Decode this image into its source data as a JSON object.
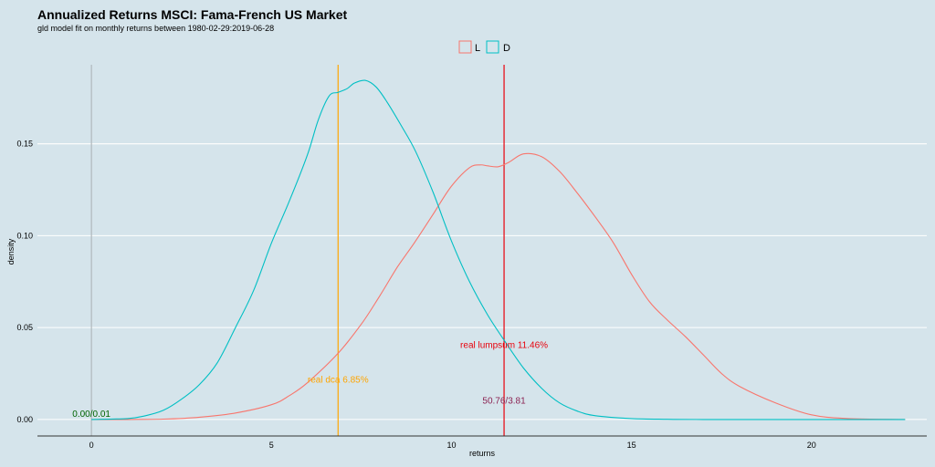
{
  "chart_data": {
    "type": "line",
    "title": "Annualized Returns MSCI: Fama-French US Market",
    "subtitle": "gld model fit on monthly returns between 1980-02-29:2019-06-28",
    "xlabel": "returns",
    "ylabel": "density",
    "xlim": [
      -1.5,
      23.2
    ],
    "ylim": [
      -0.009,
      0.193
    ],
    "xticks": [
      0,
      5,
      10,
      15,
      20
    ],
    "yticks": [
      0.0,
      0.05,
      0.1,
      0.15
    ],
    "ytick_labels": [
      "0.00",
      "0.05",
      "0.10",
      "0.15"
    ],
    "grid": "horizontal",
    "legend": {
      "position": "top-center",
      "entries": [
        "L",
        "D"
      ]
    },
    "colors": {
      "L": "#f8766d",
      "D": "#00bfc4",
      "lumpsum": "#e8000b",
      "dca": "#ffa500",
      "zero_line": "#b0b8bc",
      "annot_ratio": "#8b2252",
      "annot_zero": "#006400",
      "background": "#d5e4eb",
      "gridline": "#ffffff"
    },
    "series": [
      {
        "name": "L",
        "x": [
          0,
          1,
          2,
          3,
          4,
          5,
          5.5,
          6,
          6.85,
          7.5,
          8,
          8.5,
          9,
          9.5,
          10,
          10.5,
          10.8,
          11,
          11.3,
          11.6,
          12,
          12.5,
          13,
          13.5,
          14,
          14.5,
          15,
          15.5,
          16,
          16.5,
          17,
          17.5,
          18,
          19,
          20,
          21,
          22.6
        ],
        "values": [
          0.0,
          0.0,
          0.0002,
          0.0012,
          0.0035,
          0.008,
          0.013,
          0.02,
          0.036,
          0.052,
          0.067,
          0.083,
          0.097,
          0.112,
          0.127,
          0.137,
          0.1385,
          0.138,
          0.1375,
          0.14,
          0.1445,
          0.143,
          0.135,
          0.123,
          0.11,
          0.096,
          0.079,
          0.064,
          0.054,
          0.045,
          0.035,
          0.025,
          0.018,
          0.009,
          0.0025,
          0.0005,
          0.0
        ]
      },
      {
        "name": "D",
        "x": [
          0,
          1,
          1.5,
          2,
          2.5,
          3,
          3.5,
          4,
          4.5,
          5,
          5.5,
          6,
          6.3,
          6.6,
          6.85,
          7.1,
          7.3,
          7.6,
          7.9,
          8.2,
          8.6,
          9,
          9.5,
          10,
          10.5,
          11,
          11.5,
          12,
          12.5,
          13,
          13.5,
          14,
          15,
          16,
          17,
          22.6
        ],
        "values": [
          0.0,
          0.0005,
          0.002,
          0.005,
          0.011,
          0.019,
          0.031,
          0.05,
          0.07,
          0.096,
          0.119,
          0.144,
          0.163,
          0.176,
          0.178,
          0.18,
          0.183,
          0.1845,
          0.181,
          0.173,
          0.16,
          0.146,
          0.123,
          0.097,
          0.075,
          0.057,
          0.042,
          0.028,
          0.017,
          0.009,
          0.0045,
          0.002,
          0.0005,
          0.0001,
          0.0,
          0.0
        ]
      }
    ],
    "vlines": [
      {
        "x": 0,
        "color": "#b0b8bc"
      },
      {
        "x": 6.85,
        "color": "#ffa500"
      },
      {
        "x": 11.46,
        "color": "#e8000b"
      }
    ],
    "annotations": [
      {
        "text": "real lumpsum 11.46%",
        "x": 11.46,
        "y": 0.039,
        "color": "#e8000b"
      },
      {
        "text": "real dca 6.85%",
        "x": 6.85,
        "y": 0.02,
        "color": "#ffa500"
      },
      {
        "text": "50.76/3.81",
        "x": 11.46,
        "y": 0.0085,
        "color": "#8b2252"
      },
      {
        "text": "0.00/0.01",
        "x": 0,
        "y": 0.0015,
        "color": "#006400"
      }
    ]
  }
}
